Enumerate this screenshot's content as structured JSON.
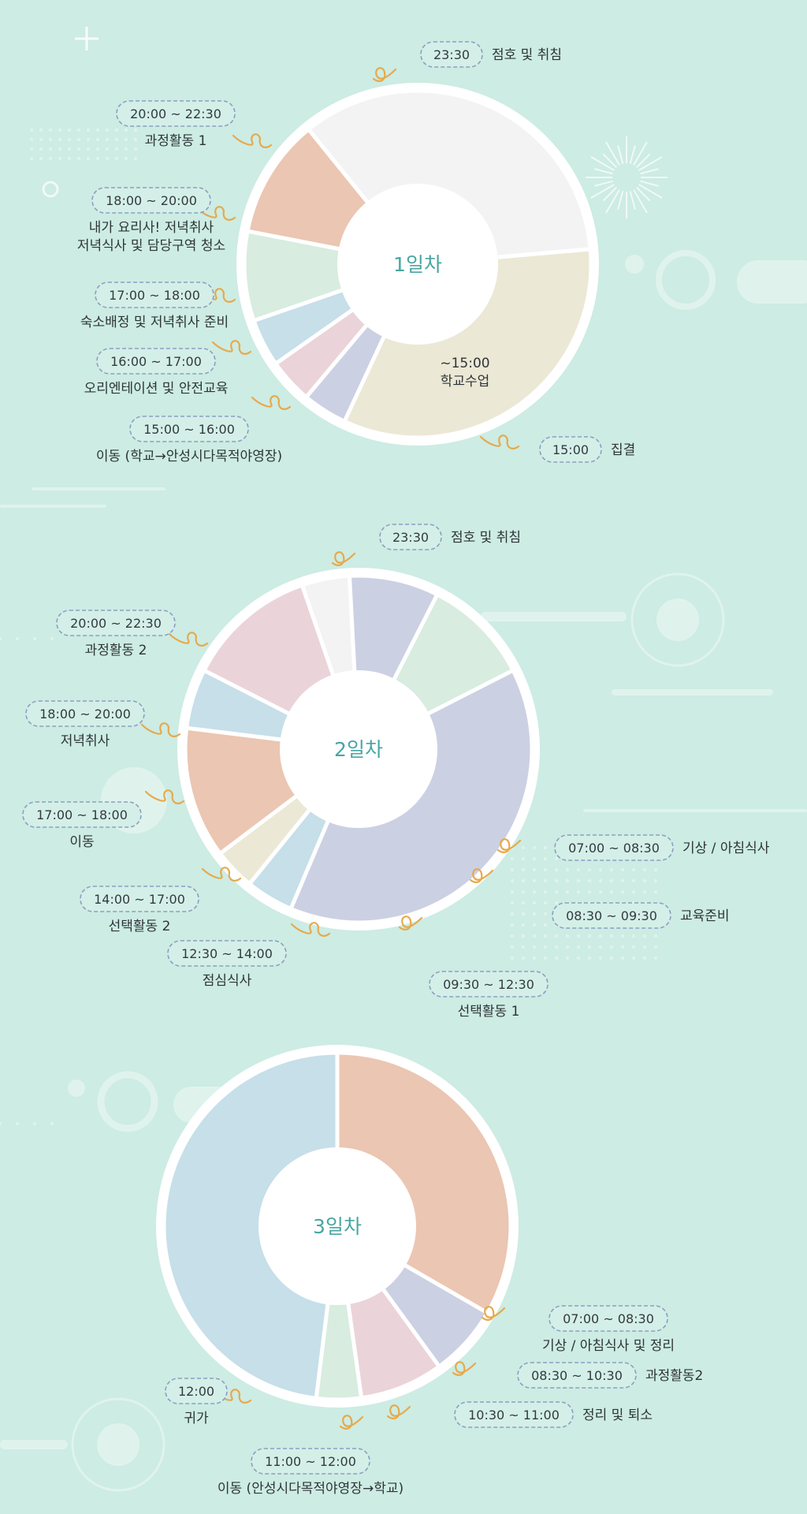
{
  "colors": {
    "background": "#cdece3",
    "peach": "#ebc6b2",
    "mint": "#d8ece0",
    "blue": "#c6dfe9",
    "pink": "#ebd3da",
    "lavender": "#ccd0e3",
    "light": "#f3f3f3",
    "beige": "#ece8d6",
    "accent_title": "#48a6a1",
    "curl": "#e6a94c",
    "pill_border": "#8d9fc1"
  },
  "chart_data": [
    {
      "type": "pie",
      "title": "1일차",
      "start_angle_deg": -5,
      "slices": [
        {
          "time": "~15:00",
          "label": "학교수업",
          "value": 120,
          "color": "#ece8d6"
        },
        {
          "time": "15:00 ~ 16:00",
          "label": "이동 (학교→안성시다목적야영장)",
          "value": 15,
          "color": "#ccd0e3"
        },
        {
          "time": "16:00 ~ 17:00",
          "label": "오리엔테이션 및 안전교육",
          "value": 15,
          "color": "#ebd3da"
        },
        {
          "time": "17:00 ~ 18:00",
          "label": "숙소배정 및 저녁취사 준비",
          "value": 16,
          "color": "#c6dfe9"
        },
        {
          "time": "18:00 ~ 20:00",
          "label": "내가 요리사! 저녁취사\n저녁식사 및 담당구역 청소",
          "value": 30,
          "color": "#d8ece0"
        },
        {
          "time": "20:00 ~ 22:30",
          "label": "과정활동 1",
          "value": 40,
          "color": "#ebc6b2"
        },
        {
          "time": "",
          "label": "",
          "value": 124,
          "color": "#f3f3f3"
        }
      ],
      "callouts": [
        {
          "time": "23:30",
          "label": "점호 및 취침"
        },
        {
          "time": "20:00 ~ 22:30",
          "label": "과정활동 1"
        },
        {
          "time": "18:00 ~ 20:00",
          "label": "내가 요리사! 저녁취사\n저녁식사 및 담당구역 청소"
        },
        {
          "time": "17:00 ~ 18:00",
          "label": "숙소배정 및 저녁취사 준비"
        },
        {
          "time": "16:00 ~ 17:00",
          "label": "오리엔테이션 및 안전교육"
        },
        {
          "time": "15:00 ~ 16:00",
          "label": "이동 (학교→안성시다목적야영장)"
        },
        {
          "time": "15:00",
          "label": "집결"
        }
      ],
      "inner_label": {
        "time": "~15:00",
        "label": "학교수업"
      }
    },
    {
      "type": "pie",
      "title": "2일차",
      "start_angle_deg": 113,
      "slices": [
        {
          "time": "07:00 ~ 08:30",
          "label": "기상 / 아침식사",
          "value": 16,
          "color": "#c6dfe9"
        },
        {
          "time": "08:30 ~ 09:30",
          "label": "교육준비",
          "value": 14,
          "color": "#ece8d6"
        },
        {
          "time": "09:30 ~ 12:30",
          "label": "선택활동 1",
          "value": 44,
          "color": "#ebc6b2"
        },
        {
          "time": "12:30 ~ 14:00",
          "label": "점심식사",
          "value": 20,
          "color": "#c6dfe9"
        },
        {
          "time": "14:00 ~ 17:00",
          "label": "선택활동 2",
          "value": 44,
          "color": "#ebd3da"
        },
        {
          "time": "17:00 ~ 18:00",
          "label": "이동",
          "value": 16,
          "color": "#f3f3f3"
        },
        {
          "time": "18:00 ~ 20:00",
          "label": "저녁취사",
          "value": 30,
          "color": "#ccd0e3"
        },
        {
          "time": "20:00 ~ 22:30",
          "label": "과정활동 2",
          "value": 36,
          "color": "#d8ece0"
        },
        {
          "time": "23:30",
          "label": "점호 및 취침",
          "value": 140,
          "color": "#ccd0e3"
        }
      ],
      "callouts": [
        {
          "time": "23:30",
          "label": "점호 및 취침"
        },
        {
          "time": "20:00 ~ 22:30",
          "label": "과정활동 2"
        },
        {
          "time": "18:00 ~ 20:00",
          "label": "저녁취사"
        },
        {
          "time": "17:00 ~ 18:00",
          "label": "이동"
        },
        {
          "time": "14:00 ~ 17:00",
          "label": "선택활동 2"
        },
        {
          "time": "12:30 ~ 14:00",
          "label": "점심식사"
        },
        {
          "time": "09:30 ~ 12:30",
          "label": "선택활동 1"
        },
        {
          "time": "08:30 ~ 09:30",
          "label": "교육준비"
        },
        {
          "time": "07:00 ~ 08:30",
          "label": "기상 / 아침식사"
        }
      ]
    },
    {
      "type": "pie",
      "title": "3일차",
      "start_angle_deg": -90,
      "slices": [
        {
          "time": "07:00 ~ 08:30",
          "label": "기상 / 아침식사 및 정리",
          "value": 120,
          "color": "#ebc6b2"
        },
        {
          "time": "08:30 ~ 10:30",
          "label": "과정활동2",
          "value": 24,
          "color": "#ccd0e3"
        },
        {
          "time": "10:30 ~ 11:00",
          "label": "정리 및 퇴소",
          "value": 28,
          "color": "#ebd3da"
        },
        {
          "time": "11:00 ~ 12:00",
          "label": "이동 (안성시다목적야영장→학교)",
          "value": 15,
          "color": "#d8ece0"
        },
        {
          "time": "12:00",
          "label": "귀가",
          "value": 173,
          "color": "#c6dfe9"
        }
      ],
      "callouts": [
        {
          "time": "07:00 ~ 08:30",
          "label": "기상 / 아침식사 및 정리"
        },
        {
          "time": "08:30 ~ 10:30",
          "label": "과정활동2"
        },
        {
          "time": "10:30 ~ 11:00",
          "label": "정리 및 퇴소"
        },
        {
          "time": "11:00 ~ 12:00",
          "label": "이동 (안성시다목적야영장→학교)"
        },
        {
          "time": "12:00",
          "label": "귀가"
        }
      ]
    }
  ]
}
